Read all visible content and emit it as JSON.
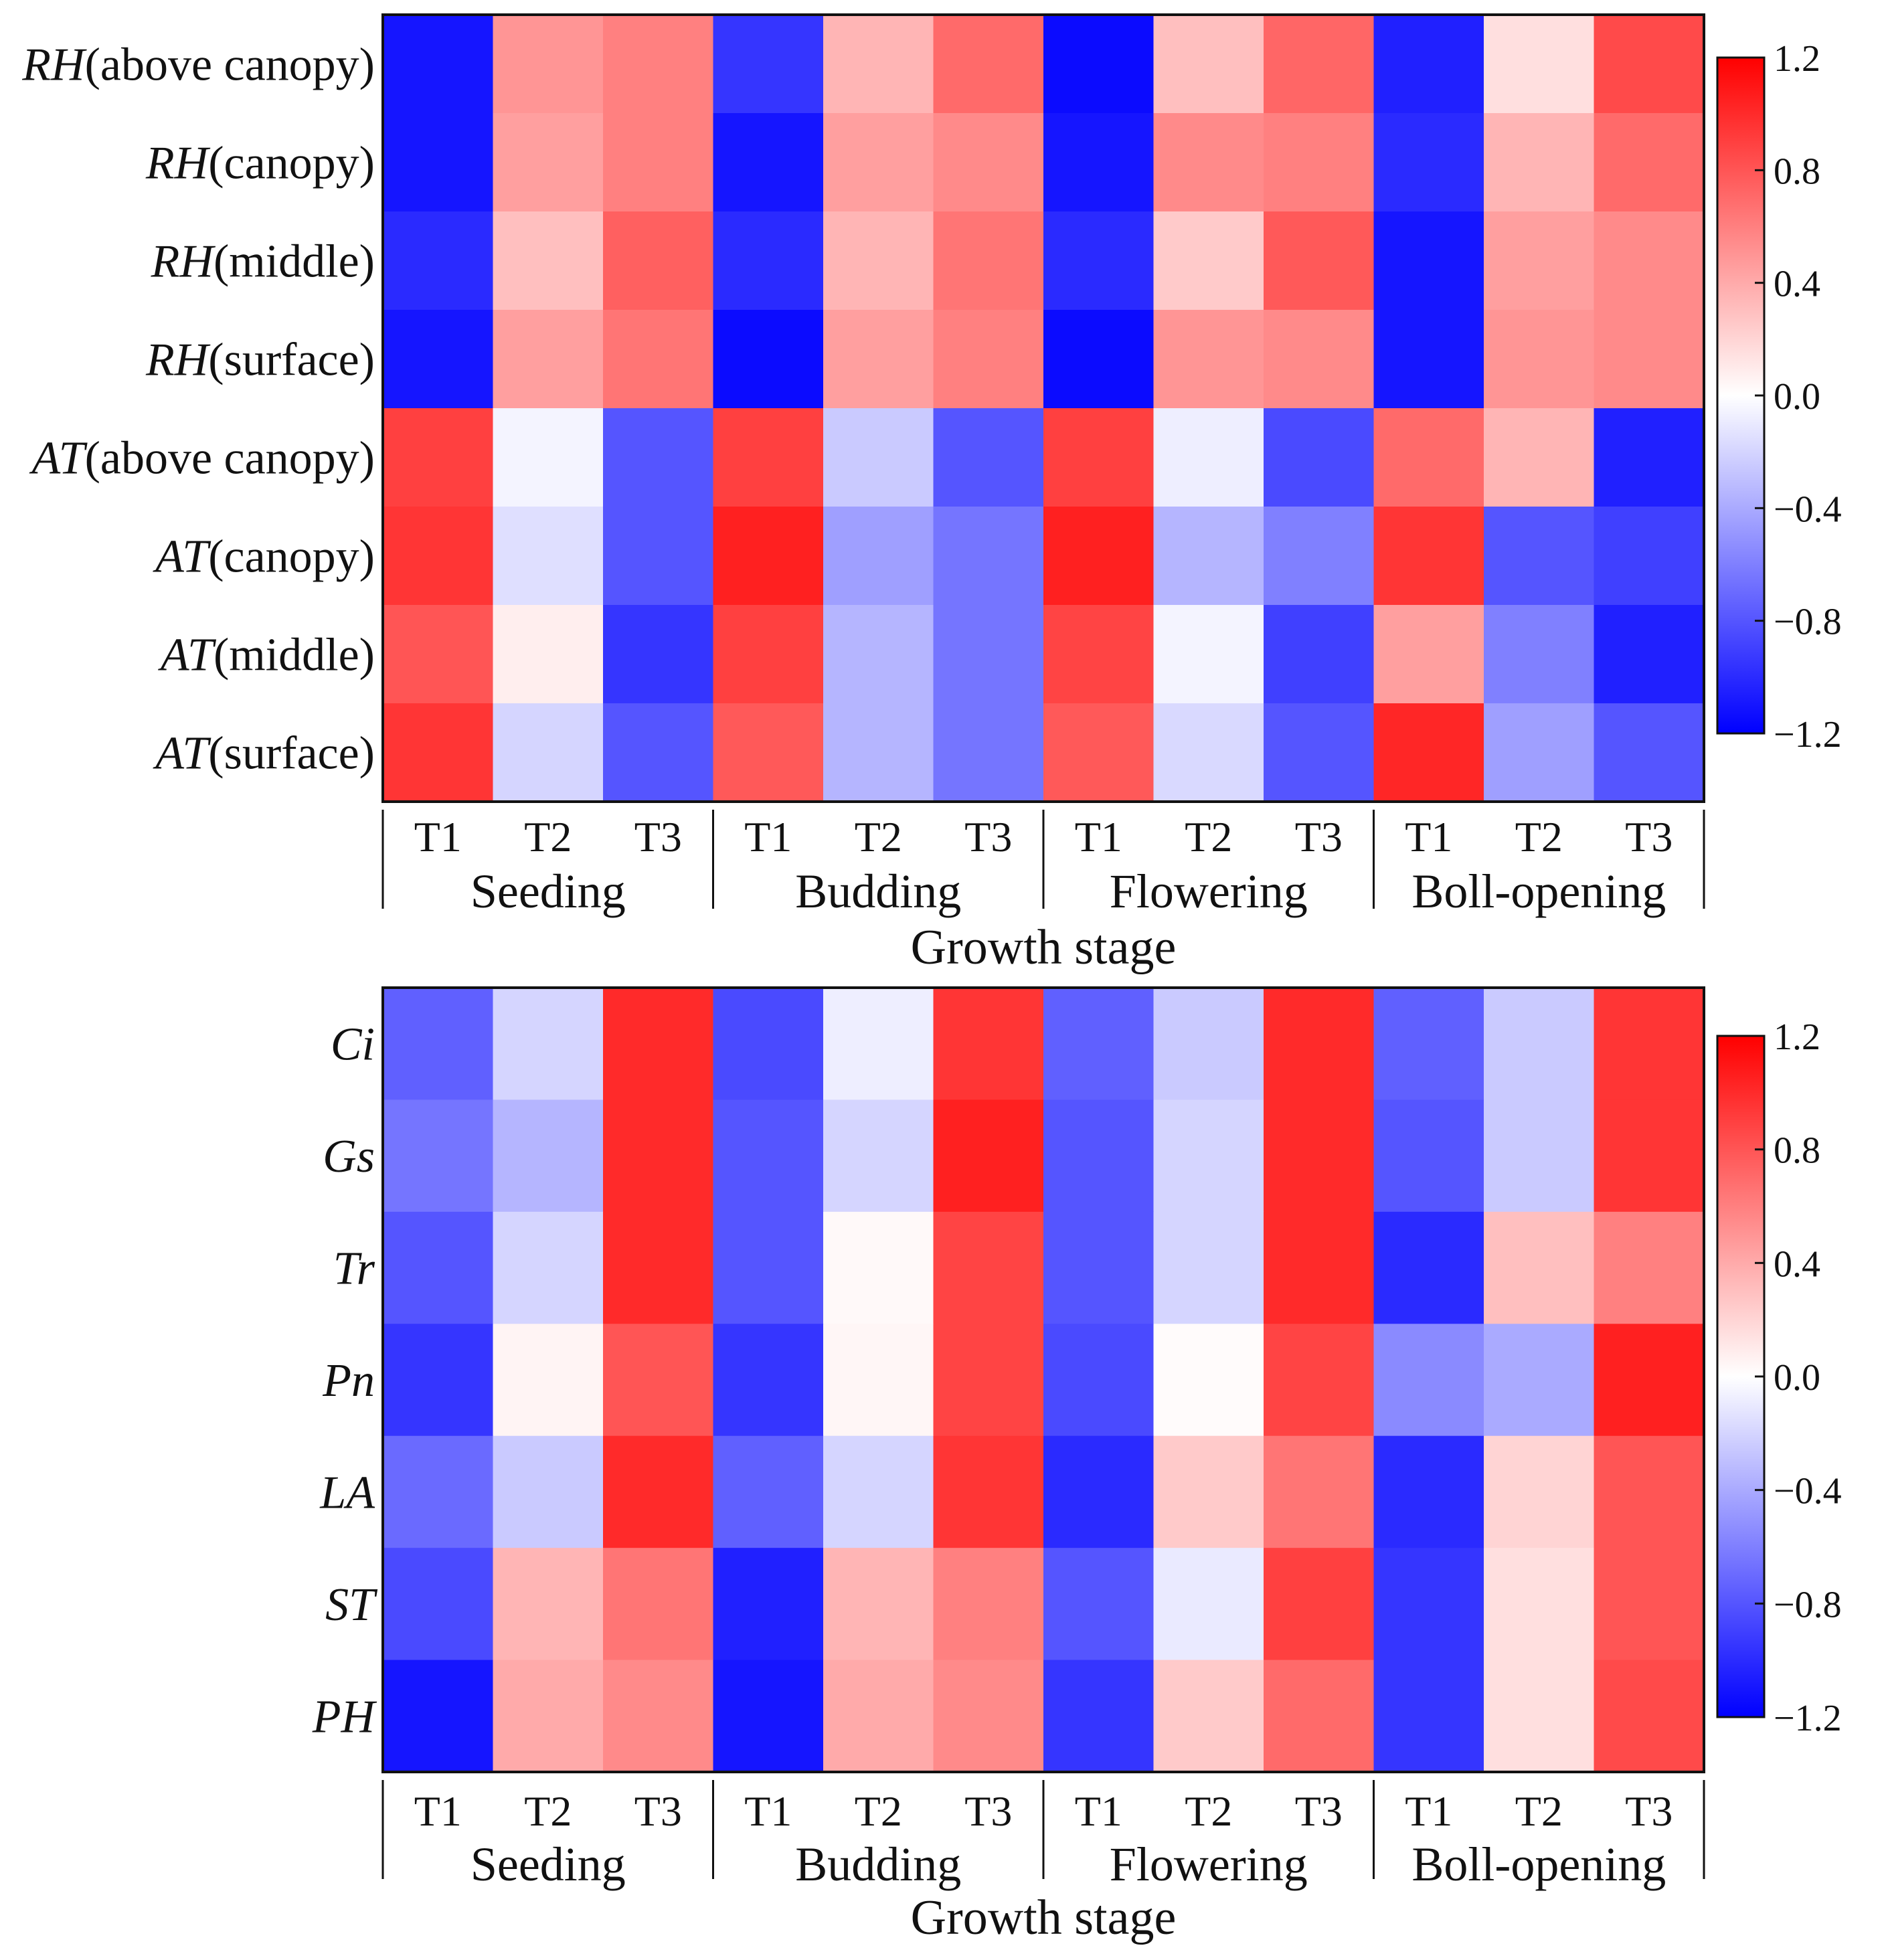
{
  "chart_data": [
    {
      "type": "heatmap",
      "xlabel": "Growth stage",
      "stages": [
        "Seeding",
        "Budding",
        "Flowering",
        "Boll-opening"
      ],
      "treatments": [
        "T1",
        "T2",
        "T3"
      ],
      "rows": [
        {
          "var": "RH",
          "qual": "(above canopy)"
        },
        {
          "var": "RH",
          "qual": "(canopy)"
        },
        {
          "var": "RH",
          "qual": "(middle)"
        },
        {
          "var": "RH",
          "qual": "(surface)"
        },
        {
          "var": "AT",
          "qual": "(above canopy)"
        },
        {
          "var": "AT",
          "qual": "(canopy)"
        },
        {
          "var": "AT",
          "qual": "(middle)"
        },
        {
          "var": "AT",
          "qual": "(surface)"
        }
      ],
      "values": [
        [
          -1.1,
          0.5,
          0.6,
          -0.95,
          0.35,
          0.7,
          -1.15,
          0.3,
          0.72,
          -1.05,
          0.15,
          0.85
        ],
        [
          -1.1,
          0.45,
          0.6,
          -1.1,
          0.45,
          0.55,
          -1.1,
          0.55,
          0.6,
          -1.0,
          0.35,
          0.7
        ],
        [
          -1.0,
          0.3,
          0.75,
          -1.0,
          0.35,
          0.65,
          -1.0,
          0.25,
          0.78,
          -1.1,
          0.45,
          0.55
        ],
        [
          -1.1,
          0.45,
          0.65,
          -1.15,
          0.45,
          0.6,
          -1.15,
          0.5,
          0.55,
          -1.1,
          0.5,
          0.55
        ],
        [
          0.9,
          -0.05,
          -0.8,
          0.9,
          -0.25,
          -0.8,
          0.9,
          -0.08,
          -0.85,
          0.7,
          0.35,
          -1.05
        ],
        [
          0.95,
          -0.15,
          -0.8,
          1.05,
          -0.45,
          -0.65,
          1.05,
          -0.35,
          -0.6,
          0.95,
          -0.8,
          -0.9
        ],
        [
          0.8,
          0.08,
          -0.95,
          0.9,
          -0.35,
          -0.65,
          0.88,
          -0.05,
          -0.9,
          0.45,
          -0.6,
          -1.05
        ],
        [
          0.95,
          -0.2,
          -0.8,
          0.78,
          -0.35,
          -0.65,
          0.78,
          -0.18,
          -0.8,
          1.02,
          -0.45,
          -0.8
        ]
      ],
      "colorbar": {
        "min": -1.2,
        "max": 1.2,
        "ticks": [
          "1.2",
          "0.8",
          "0.4",
          "0.0",
          "−0.4",
          "−0.8",
          "−1.2"
        ]
      },
      "colors": {
        "low": "#0000ff",
        "mid": "#ffffff",
        "high": "#ff0000"
      }
    },
    {
      "type": "heatmap",
      "xlabel": "Growth stage",
      "stages": [
        "Seeding",
        "Budding",
        "Flowering",
        "Boll-opening"
      ],
      "treatments": [
        "T1",
        "T2",
        "T3"
      ],
      "rows": [
        {
          "var": "Ci",
          "qual": ""
        },
        {
          "var": "Gs",
          "qual": ""
        },
        {
          "var": "Tr",
          "qual": ""
        },
        {
          "var": "Pn",
          "qual": ""
        },
        {
          "var": "LA",
          "qual": ""
        },
        {
          "var": "ST",
          "qual": ""
        },
        {
          "var": "PH",
          "qual": ""
        }
      ],
      "values": [
        [
          -0.75,
          -0.2,
          1.0,
          -0.85,
          -0.08,
          0.95,
          -0.75,
          -0.25,
          1.0,
          -0.75,
          -0.25,
          0.95
        ],
        [
          -0.65,
          -0.35,
          1.0,
          -0.8,
          -0.2,
          1.05,
          -0.8,
          -0.2,
          1.0,
          -0.8,
          -0.25,
          0.95
        ],
        [
          -0.8,
          -0.2,
          1.0,
          -0.8,
          0.03,
          0.88,
          -0.8,
          -0.2,
          1.0,
          -1.0,
          0.3,
          0.6
        ],
        [
          -0.95,
          0.05,
          0.8,
          -0.95,
          0.04,
          0.88,
          -0.85,
          0.02,
          0.88,
          -0.55,
          -0.4,
          1.05
        ],
        [
          -0.7,
          -0.25,
          1.0,
          -0.75,
          -0.2,
          0.95,
          -1.0,
          0.25,
          0.65,
          -1.0,
          0.2,
          0.8
        ],
        [
          -0.85,
          0.35,
          0.65,
          -1.05,
          0.35,
          0.6,
          -0.8,
          -0.1,
          0.9,
          -0.95,
          0.15,
          0.8
        ],
        [
          -1.1,
          0.4,
          0.55,
          -1.1,
          0.4,
          0.55,
          -0.95,
          0.25,
          0.7,
          -0.95,
          0.15,
          0.85
        ]
      ],
      "colorbar": {
        "min": -1.2,
        "max": 1.2,
        "ticks": [
          "1.2",
          "0.8",
          "0.4",
          "0.0",
          "−0.4",
          "−0.8",
          "−1.2"
        ]
      },
      "colors": {
        "low": "#0000ff",
        "mid": "#ffffff",
        "high": "#ff0000"
      }
    }
  ]
}
